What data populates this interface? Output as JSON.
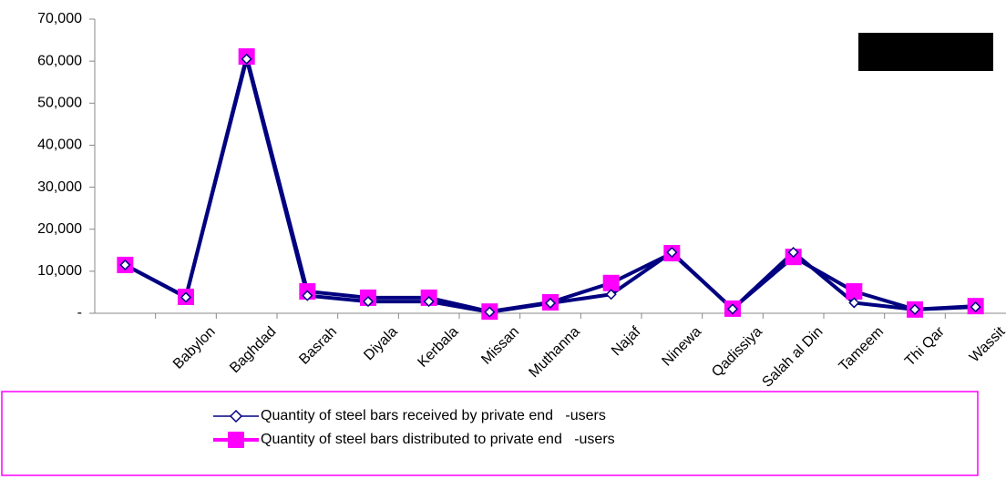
{
  "chart_data": {
    "type": "line",
    "categories": [
      null,
      "Babylon",
      "Baghdad",
      "Basrah",
      "Diyala",
      "Kerbala",
      "Missan",
      "Muthanna",
      "Najaf",
      "Ninewa",
      "Qadissiya",
      "Salah al Din",
      "Tameem",
      "Thi Qar",
      "Wassit"
    ],
    "series": [
      {
        "name": "Quantity of steel bars received by private end   -users",
        "color": "#000080",
        "marker": "diamond",
        "values": [
          11500,
          3800,
          60500,
          4200,
          2800,
          2800,
          300,
          2400,
          4500,
          14500,
          1000,
          14500,
          2500,
          900,
          1500
        ]
      },
      {
        "name": "Quantity of steel bars distributed to private end   -users",
        "color": "#ff00ff",
        "marker": "square",
        "values": [
          11500,
          3900,
          61100,
          5200,
          3700,
          3700,
          400,
          2600,
          7200,
          14300,
          1100,
          13400,
          5200,
          900,
          1700
        ]
      }
    ],
    "ylim": [
      0,
      70000
    ],
    "yticks": [
      {
        "value": 0,
        "label": "-"
      },
      {
        "value": 10000,
        "label": "10,000"
      },
      {
        "value": 20000,
        "label": "20,000"
      },
      {
        "value": 30000,
        "label": "30,000"
      },
      {
        "value": 40000,
        "label": "40,000"
      },
      {
        "value": 50000,
        "label": "50,000"
      },
      {
        "value": 60000,
        "label": "60,000"
      },
      {
        "value": 70000,
        "label": "70,000"
      }
    ],
    "grid": false
  }
}
